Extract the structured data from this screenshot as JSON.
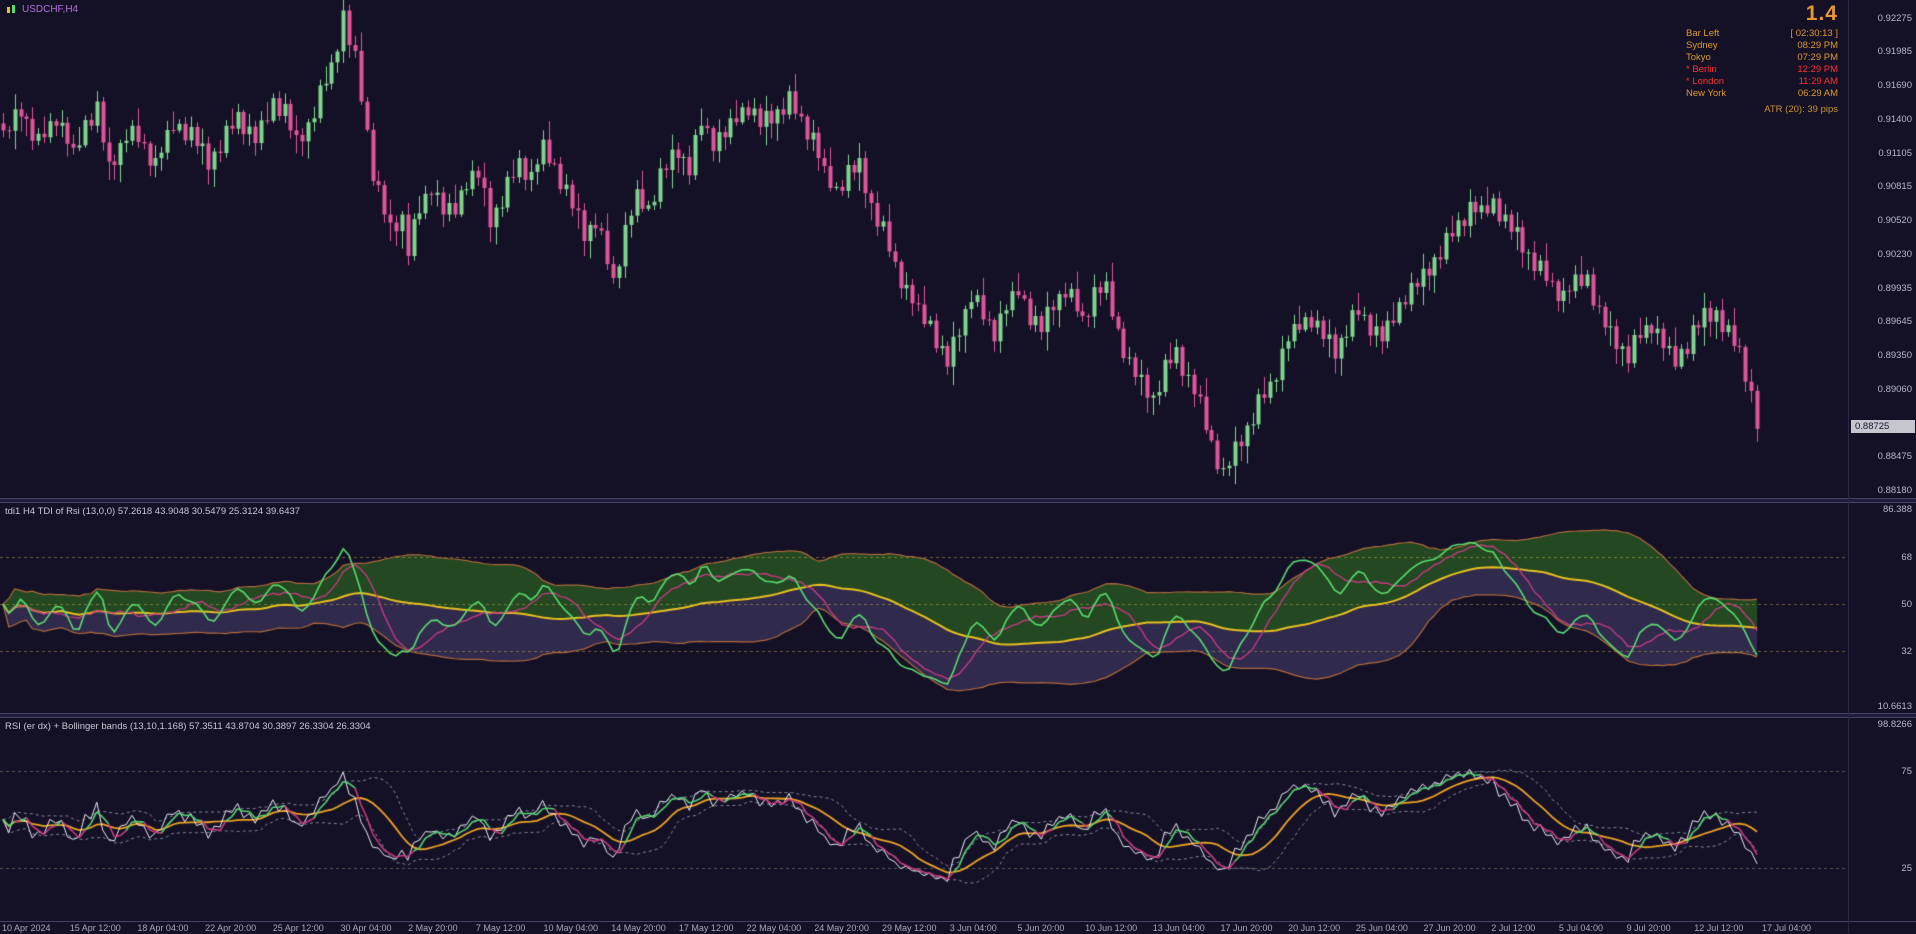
{
  "window": {
    "symbol_label": "USDCHF,H4"
  },
  "header_panel": {
    "big_value": "1.4",
    "rows": [
      {
        "label": "Bar Left",
        "value": "[ 02:30:13 ]",
        "alert": false
      },
      {
        "label": "Sydney",
        "value": "08:29 PM",
        "alert": false
      },
      {
        "label": "Tokyo",
        "value": "07:29 PM",
        "alert": false
      },
      {
        "label": "* Berlin",
        "value": "12:29 PM",
        "alert": true
      },
      {
        "label": "* London",
        "value": "11:29 AM",
        "alert": true
      },
      {
        "label": "New York",
        "value": "06:29 AM",
        "alert": false
      }
    ],
    "atr_label": "ATR (20): 39 pips"
  },
  "price_axis": {
    "labels": [
      "0.92275",
      "0.91985",
      "0.91690",
      "0.91400",
      "0.91105",
      "0.90815",
      "0.90520",
      "0.90230",
      "0.89935",
      "0.89645",
      "0.89350",
      "0.89060",
      "0.88475",
      "0.88180"
    ],
    "current_price": "0.88725"
  },
  "tdi_panel": {
    "title": "tdi1 H4 TDI of Rsi (13,0,0) 57.2618 43.9048 30.5479 25.3124 39.6437",
    "axis_top": "86.388",
    "axis_bottom": "10.6613",
    "levels": [
      68,
      50,
      32
    ],
    "ylim": [
      10.6613,
      86.388
    ]
  },
  "rsi_panel": {
    "title": "RSI (er dx) + Bollinger bands (13,10,1.168) 57.3511 43.8704 30.3897 26.3304 26.3304",
    "axis_top": "98.8266",
    "levels": [
      75,
      25
    ],
    "ylim": [
      1.2,
      98.8266
    ]
  },
  "time_axis": {
    "labels": [
      "10 Apr 2024",
      "15 Apr 12:00",
      "18 Apr 04:00",
      "22 Apr 20:00",
      "25 Apr 12:00",
      "30 Apr 04:00",
      "2 May 20:00",
      "7 May 12:00",
      "10 May 04:00",
      "14 May 20:00",
      "17 May 12:00",
      "22 May 04:00",
      "24 May 20:00",
      "29 May 12:00",
      "3 Jun 04:00",
      "5 Jun 20:00",
      "10 Jun 12:00",
      "13 Jun 04:00",
      "17 Jun 20:00",
      "20 Jun 12:00",
      "25 Jun 04:00",
      "27 Jun 20:00",
      "2 Jul 12:00",
      "5 Jul 04:00",
      "9 Jul 20:00",
      "12 Jul 12:00",
      "17 Jul 04:00"
    ]
  },
  "chart_data": {
    "type": "candlestick",
    "symbol": "USDCHF",
    "timeframe": "H4",
    "bars": 300,
    "ylim": [
      0.8818,
      0.92275
    ],
    "date_range": [
      "10 Apr 2024",
      "17 Jul 2024"
    ],
    "last_close": 0.88725,
    "price_anchors": [
      [
        0,
        0.9125
      ],
      [
        3,
        0.9148
      ],
      [
        6,
        0.9118
      ],
      [
        9,
        0.9142
      ],
      [
        12,
        0.9108
      ],
      [
        14,
        0.9136
      ],
      [
        16,
        0.915
      ],
      [
        18,
        0.9095
      ],
      [
        21,
        0.9128
      ],
      [
        23,
        0.9122
      ],
      [
        26,
        0.91
      ],
      [
        29,
        0.9135
      ],
      [
        32,
        0.9128
      ],
      [
        35,
        0.9102
      ],
      [
        38,
        0.9125
      ],
      [
        40,
        0.9142
      ],
      [
        43,
        0.912
      ],
      [
        46,
        0.9155
      ],
      [
        48,
        0.9148
      ],
      [
        50,
        0.9118
      ],
      [
        52,
        0.9135
      ],
      [
        54,
        0.916
      ],
      [
        56,
        0.9185
      ],
      [
        58,
        0.9228
      ],
      [
        59,
        0.9205
      ],
      [
        60,
        0.9192
      ],
      [
        61,
        0.916
      ],
      [
        63,
        0.9095
      ],
      [
        65,
        0.906
      ],
      [
        66,
        0.9042
      ],
      [
        68,
        0.9055
      ],
      [
        69,
        0.9028
      ],
      [
        71,
        0.906
      ],
      [
        73,
        0.9082
      ],
      [
        75,
        0.9058
      ],
      [
        77,
        0.9062
      ],
      [
        79,
        0.9088
      ],
      [
        81,
        0.9092
      ],
      [
        83,
        0.9052
      ],
      [
        85,
        0.907
      ],
      [
        88,
        0.9102
      ],
      [
        90,
        0.9088
      ],
      [
        92,
        0.9115
      ],
      [
        94,
        0.9098
      ],
      [
        96,
        0.9078
      ],
      [
        99,
        0.904
      ],
      [
        101,
        0.9052
      ],
      [
        104,
        0.8998
      ],
      [
        106,
        0.9042
      ],
      [
        108,
        0.9072
      ],
      [
        110,
        0.9062
      ],
      [
        112,
        0.9092
      ],
      [
        115,
        0.9112
      ],
      [
        117,
        0.9098
      ],
      [
        119,
        0.9136
      ],
      [
        121,
        0.912
      ],
      [
        123,
        0.9125
      ],
      [
        125,
        0.9142
      ],
      [
        127,
        0.9152
      ],
      [
        129,
        0.9136
      ],
      [
        131,
        0.9142
      ],
      [
        134,
        0.9155
      ],
      [
        136,
        0.9138
      ],
      [
        138,
        0.9122
      ],
      [
        140,
        0.9092
      ],
      [
        142,
        0.9078
      ],
      [
        144,
        0.9095
      ],
      [
        146,
        0.9098
      ],
      [
        148,
        0.9065
      ],
      [
        150,
        0.9042
      ],
      [
        152,
        0.9012
      ],
      [
        154,
        0.899
      ],
      [
        156,
        0.8972
      ],
      [
        158,
        0.8962
      ],
      [
        160,
        0.8938
      ],
      [
        161,
        0.8928
      ],
      [
        163,
        0.8958
      ],
      [
        165,
        0.8988
      ],
      [
        167,
        0.8968
      ],
      [
        169,
        0.8955
      ],
      [
        171,
        0.8975
      ],
      [
        173,
        0.8992
      ],
      [
        175,
        0.897
      ],
      [
        177,
        0.8958
      ],
      [
        179,
        0.898
      ],
      [
        181,
        0.8992
      ],
      [
        183,
        0.8975
      ],
      [
        184,
        0.8965
      ],
      [
        186,
        0.8988
      ],
      [
        188,
        0.8992
      ],
      [
        190,
        0.8955
      ],
      [
        192,
        0.8928
      ],
      [
        194,
        0.891
      ],
      [
        196,
        0.8898
      ],
      [
        198,
        0.8922
      ],
      [
        200,
        0.8938
      ],
      [
        202,
        0.8912
      ],
      [
        204,
        0.8892
      ],
      [
        206,
        0.8858
      ],
      [
        208,
        0.8832
      ],
      [
        210,
        0.8852
      ],
      [
        212,
        0.8872
      ],
      [
        214,
        0.8892
      ],
      [
        216,
        0.8908
      ],
      [
        219,
        0.8948
      ],
      [
        221,
        0.8962
      ],
      [
        223,
        0.8968
      ],
      [
        225,
        0.8952
      ],
      [
        227,
        0.8938
      ],
      [
        229,
        0.8958
      ],
      [
        231,
        0.8972
      ],
      [
        233,
        0.896
      ],
      [
        235,
        0.8948
      ],
      [
        237,
        0.8968
      ],
      [
        239,
        0.8988
      ],
      [
        242,
        0.9002
      ],
      [
        244,
        0.9018
      ],
      [
        246,
        0.9032
      ],
      [
        248,
        0.9048
      ],
      [
        250,
        0.9062
      ],
      [
        252,
        0.9058
      ],
      [
        254,
        0.9068
      ],
      [
        256,
        0.9052
      ],
      [
        258,
        0.9038
      ],
      [
        260,
        0.9022
      ],
      [
        262,
        0.9008
      ],
      [
        264,
        0.8995
      ],
      [
        266,
        0.8985
      ],
      [
        268,
        0.8998
      ],
      [
        270,
        0.9002
      ],
      [
        272,
        0.8972
      ],
      [
        274,
        0.8952
      ],
      [
        277,
        0.8935
      ],
      [
        279,
        0.8952
      ],
      [
        281,
        0.8962
      ],
      [
        283,
        0.8942
      ],
      [
        285,
        0.893
      ],
      [
        287,
        0.8945
      ],
      [
        288,
        0.8956
      ],
      [
        290,
        0.8968
      ],
      [
        292,
        0.8972
      ],
      [
        294,
        0.8952
      ],
      [
        296,
        0.8938
      ],
      [
        297,
        0.892
      ],
      [
        298,
        0.8898
      ],
      [
        299,
        0.8872
      ]
    ],
    "texture_pattern": [
      0.0005,
      -0.0003,
      0.0008,
      -0.0006,
      0.0002,
      -0.0007,
      0.0009,
      -0.0002,
      0.0004,
      -0.0008,
      0.0006,
      -0.0001,
      0.0007,
      -0.0005,
      0.0003,
      -0.0009
    ],
    "wick_pattern": [
      0.0009,
      0.0004,
      0.0013,
      0.0006,
      0.0003,
      0.001,
      0.0005,
      0.0015,
      0.0007,
      0.0002,
      0.0011,
      0.0005,
      0.0008,
      0.0016,
      0.0004,
      0.0006
    ],
    "indicators": {
      "tdi": {
        "rsi_period": 13,
        "price_line": 2,
        "signal_line": 7,
        "base_line": 34,
        "band_dev": 1.62
      },
      "rsi_bb": {
        "rsi_period": 13,
        "bb_period": 10,
        "bb_dev": 1.168,
        "color_smooth": 3
      }
    },
    "colors": {
      "bg": "#141126",
      "up": "#7fd48c",
      "down": "#e0549c",
      "tdi_fill_up": "rgba(38,82,34,0.85)",
      "tdi_fill_dn": "rgba(66,60,104,0.60)",
      "tdi_band": "#b06a3c",
      "tdi_base": "#e8c020",
      "tdi_signal": "#c23a80",
      "tdi_price": "#58dc6e",
      "level_tdi": "rgba(196,176,70,0.5)",
      "rsi_band": "rgba(168,172,190,0.75)",
      "rsi_mid": "#eda224",
      "rsi_white": "#e9e9f0",
      "rsi_up": "#54d470",
      "rsi_dn": "#c93982",
      "level_rsi": "rgba(120,150,120,0.55)"
    }
  }
}
